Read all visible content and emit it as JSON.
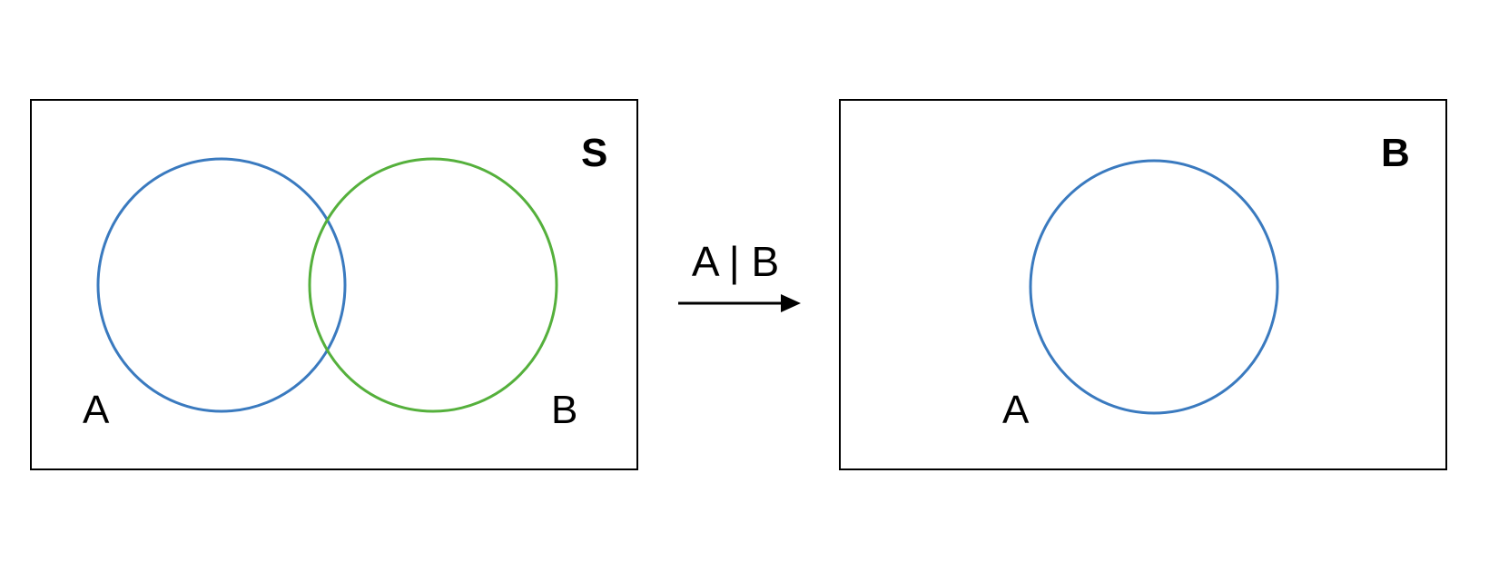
{
  "colors": {
    "set_a": "#3a7abf",
    "set_b": "#55b03c",
    "frame": "#000000"
  },
  "left_panel": {
    "space_label": "S",
    "set_a_label": "A",
    "set_b_label": "B"
  },
  "arrow": {
    "label": "A | B"
  },
  "right_panel": {
    "space_label": "B",
    "set_a_label": "A"
  }
}
